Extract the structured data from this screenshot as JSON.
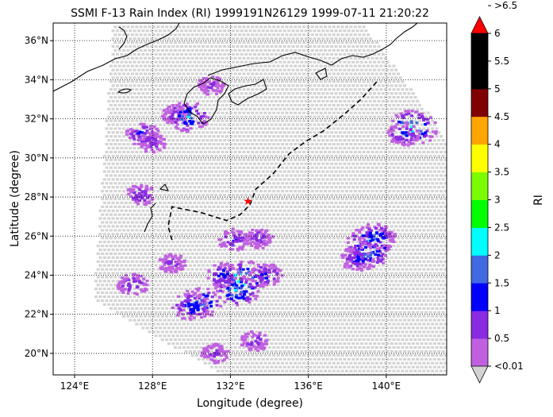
{
  "title": "SSMI F-13 Rain Index (RI) 1999191N26129 1999-07-11 21:20:22",
  "xlabel": "Longitude (degree)",
  "ylabel": "Latitude (degree)",
  "x_ticks": [
    "124°E",
    "128°E",
    "132°E",
    "136°E",
    "140°E"
  ],
  "y_ticks": [
    "20°N",
    "22°N",
    "24°N",
    "26°N",
    "28°N",
    "30°N",
    "32°N",
    "34°N",
    "36°N"
  ],
  "colorbar": {
    "label": "RI",
    "tick_labels": [
      "<0.01",
      "0.5",
      "1",
      "1.5",
      "2",
      "2.5",
      "3",
      "3.5",
      "4",
      "4.5",
      "5",
      "5.5",
      "6",
      ">6.5"
    ],
    "colors": [
      "#c060e0",
      "#8a2be2",
      "#0000ff",
      "#4169e1",
      "#00ffff",
      "#00ff00",
      "#7cfc00",
      "#ffff00",
      "#ffa500",
      "#800000",
      "#000000",
      "#000000"
    ],
    "under_color": "#d3d3d3",
    "over_color": "#ff0000"
  },
  "chart_data": {
    "type": "heatmap",
    "title": "SSMI F-13 Rain Index (RI) 1999191N26129 1999-07-11 21:20:22",
    "xlabel": "Longitude (degree)",
    "ylabel": "Latitude (degree)",
    "xlim": [
      122.9,
      143.1
    ],
    "ylim": [
      18.9,
      36.9
    ],
    "grid": true,
    "storm_center": {
      "lon": 132.9,
      "lat": 27.8
    },
    "track": [
      [
        129.0,
        25.8
      ],
      [
        128.8,
        26.5
      ],
      [
        129.0,
        27.5
      ],
      [
        130.5,
        27.2
      ],
      [
        131.8,
        26.8
      ],
      [
        132.5,
        27.1
      ],
      [
        133.0,
        27.6
      ],
      [
        133.3,
        28.4
      ],
      [
        134.2,
        29.2
      ],
      [
        135.0,
        30.2
      ],
      [
        135.8,
        30.8
      ],
      [
        136.8,
        31.4
      ],
      [
        137.8,
        32.2
      ],
      [
        138.7,
        33.0
      ],
      [
        139.6,
        34.0
      ]
    ],
    "rain_cells": [
      {
        "lon": 127.5,
        "lat": 31.2,
        "ri": 1.2
      },
      {
        "lon": 128.0,
        "lat": 30.8,
        "ri": 0.8
      },
      {
        "lon": 129.2,
        "lat": 32.2,
        "ri": 0.7
      },
      {
        "lon": 129.8,
        "lat": 32.1,
        "ri": 2.0
      },
      {
        "lon": 127.4,
        "lat": 28.1,
        "ri": 0.9
      },
      {
        "lon": 131.0,
        "lat": 33.7,
        "ri": 0.6
      },
      {
        "lon": 132.2,
        "lat": 25.8,
        "ri": 1.0
      },
      {
        "lon": 133.5,
        "lat": 25.9,
        "ri": 0.8
      },
      {
        "lon": 132.6,
        "lat": 23.8,
        "ri": 2.8
      },
      {
        "lon": 132.3,
        "lat": 23.2,
        "ri": 2.2
      },
      {
        "lon": 130.5,
        "lat": 22.6,
        "ri": 2.0
      },
      {
        "lon": 130.0,
        "lat": 22.4,
        "ri": 1.6
      },
      {
        "lon": 131.6,
        "lat": 24.0,
        "ri": 1.3
      },
      {
        "lon": 129.0,
        "lat": 24.6,
        "ri": 0.7
      },
      {
        "lon": 139.2,
        "lat": 25.6,
        "ri": 2.4
      },
      {
        "lon": 139.0,
        "lat": 25.1,
        "ri": 2.0
      },
      {
        "lon": 139.5,
        "lat": 26.0,
        "ri": 1.6
      },
      {
        "lon": 138.5,
        "lat": 24.8,
        "ri": 1.2
      },
      {
        "lon": 141.3,
        "lat": 31.5,
        "ri": 2.6
      },
      {
        "lon": 140.9,
        "lat": 31.2,
        "ri": 1.2
      },
      {
        "lon": 133.8,
        "lat": 24.0,
        "ri": 1.2
      },
      {
        "lon": 127.0,
        "lat": 23.5,
        "ri": 1.0
      },
      {
        "lon": 133.2,
        "lat": 20.6,
        "ri": 0.8
      },
      {
        "lon": 131.2,
        "lat": 20.0,
        "ri": 0.7
      }
    ]
  }
}
